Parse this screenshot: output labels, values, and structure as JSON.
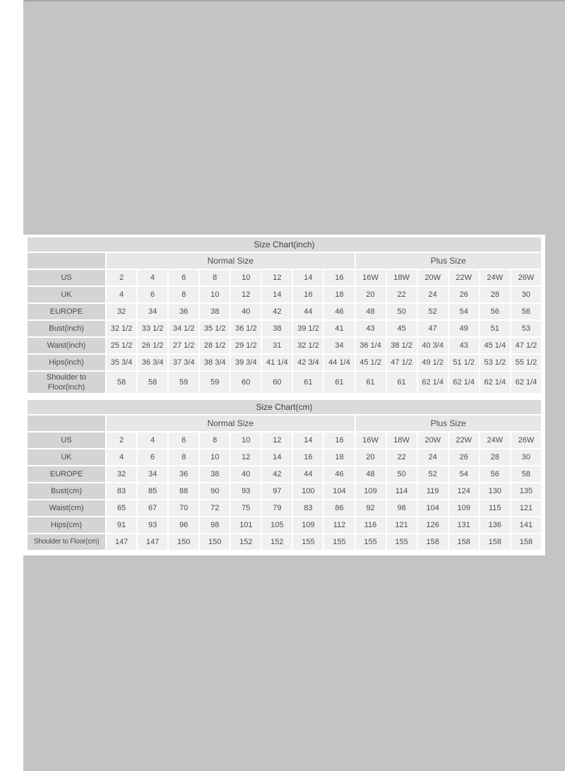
{
  "page": {
    "background_color": "#ffffff",
    "image_background_color": "#c5c4c4",
    "panel_color": "#ffffff"
  },
  "colors": {
    "title_bar_bg": "#dcdbdb",
    "label_cell_bg": "#d5d4d4",
    "group_cell_bg": "#e8e7e7",
    "data_cell_bg": "#f1f0f0",
    "text": "#4b4b4b"
  },
  "tables": [
    {
      "title": "Size Chart(inch)",
      "groups": [
        {
          "label": "Normal Size",
          "span": 8
        },
        {
          "label": "Plus Size",
          "span": 6
        }
      ],
      "rows": [
        {
          "label": "US",
          "values": [
            "2",
            "4",
            "6",
            "8",
            "10",
            "12",
            "14",
            "16",
            "16W",
            "18W",
            "20W",
            "22W",
            "24W",
            "26W"
          ]
        },
        {
          "label": "UK",
          "values": [
            "4",
            "6",
            "8",
            "10",
            "12",
            "14",
            "16",
            "18",
            "20",
            "22",
            "24",
            "26",
            "28",
            "30"
          ]
        },
        {
          "label": "EUROPE",
          "values": [
            "32",
            "34",
            "36",
            "38",
            "40",
            "42",
            "44",
            "46",
            "48",
            "50",
            "52",
            "54",
            "56",
            "58"
          ]
        },
        {
          "label": "Bust(inch)",
          "values": [
            "32 1/2",
            "33 1/2",
            "34 1/2",
            "35 1/2",
            "36 1/2",
            "38",
            "39 1/2",
            "41",
            "43",
            "45",
            "47",
            "49",
            "51",
            "53"
          ]
        },
        {
          "label": "Waist(inch)",
          "values": [
            "25 1/2",
            "26 1/2",
            "27 1/2",
            "28 1/2",
            "29 1/2",
            "31",
            "32 1/2",
            "34",
            "36 1/4",
            "38 1/2",
            "40 3/4",
            "43",
            "45 1/4",
            "47 1/2"
          ]
        },
        {
          "label": "Hips(inch)",
          "values": [
            "35 3/4",
            "36 3/4",
            "37 3/4",
            "38 3/4",
            "39 3/4",
            "41 1/4",
            "42 3/4",
            "44 1/4",
            "45 1/2",
            "47 1/2",
            "49 1/2",
            "51 1/2",
            "53 1/2",
            "55 1/2"
          ]
        },
        {
          "label": "Shoulder to Floor(inch)",
          "values": [
            "58",
            "58",
            "59",
            "59",
            "60",
            "60",
            "61",
            "61",
            "61",
            "61",
            "62 1/4",
            "62 1/4",
            "62 1/4",
            "62 1/4"
          ]
        }
      ]
    },
    {
      "title": "Size Chart(cm)",
      "groups": [
        {
          "label": "Normal Size",
          "span": 8
        },
        {
          "label": "Plus Size",
          "span": 6
        }
      ],
      "rows": [
        {
          "label": "US",
          "values": [
            "2",
            "4",
            "6",
            "8",
            "10",
            "12",
            "14",
            "16",
            "16W",
            "18W",
            "20W",
            "22W",
            "24W",
            "26W"
          ]
        },
        {
          "label": "UK",
          "values": [
            "4",
            "6",
            "8",
            "10",
            "12",
            "14",
            "16",
            "18",
            "20",
            "22",
            "24",
            "26",
            "28",
            "30"
          ]
        },
        {
          "label": "EUROPE",
          "values": [
            "32",
            "34",
            "36",
            "38",
            "40",
            "42",
            "44",
            "46",
            "48",
            "50",
            "52",
            "54",
            "56",
            "58"
          ]
        },
        {
          "label": "Bust(cm)",
          "values": [
            "83",
            "85",
            "88",
            "90",
            "93",
            "97",
            "100",
            "104",
            "109",
            "114",
            "119",
            "124",
            "130",
            "135"
          ]
        },
        {
          "label": "Waist(cm)",
          "values": [
            "65",
            "67",
            "70",
            "72",
            "75",
            "79",
            "83",
            "86",
            "92",
            "98",
            "104",
            "109",
            "115",
            "121"
          ]
        },
        {
          "label": "Hips(cm)",
          "values": [
            "91",
            "93",
            "96",
            "98",
            "101",
            "105",
            "109",
            "112",
            "116",
            "121",
            "126",
            "131",
            "136",
            "141"
          ]
        },
        {
          "label": "Shoulder to Floor(cm)",
          "values": [
            "147",
            "147",
            "150",
            "150",
            "152",
            "152",
            "155",
            "155",
            "155",
            "155",
            "158",
            "158",
            "158",
            "158"
          ]
        }
      ]
    }
  ]
}
